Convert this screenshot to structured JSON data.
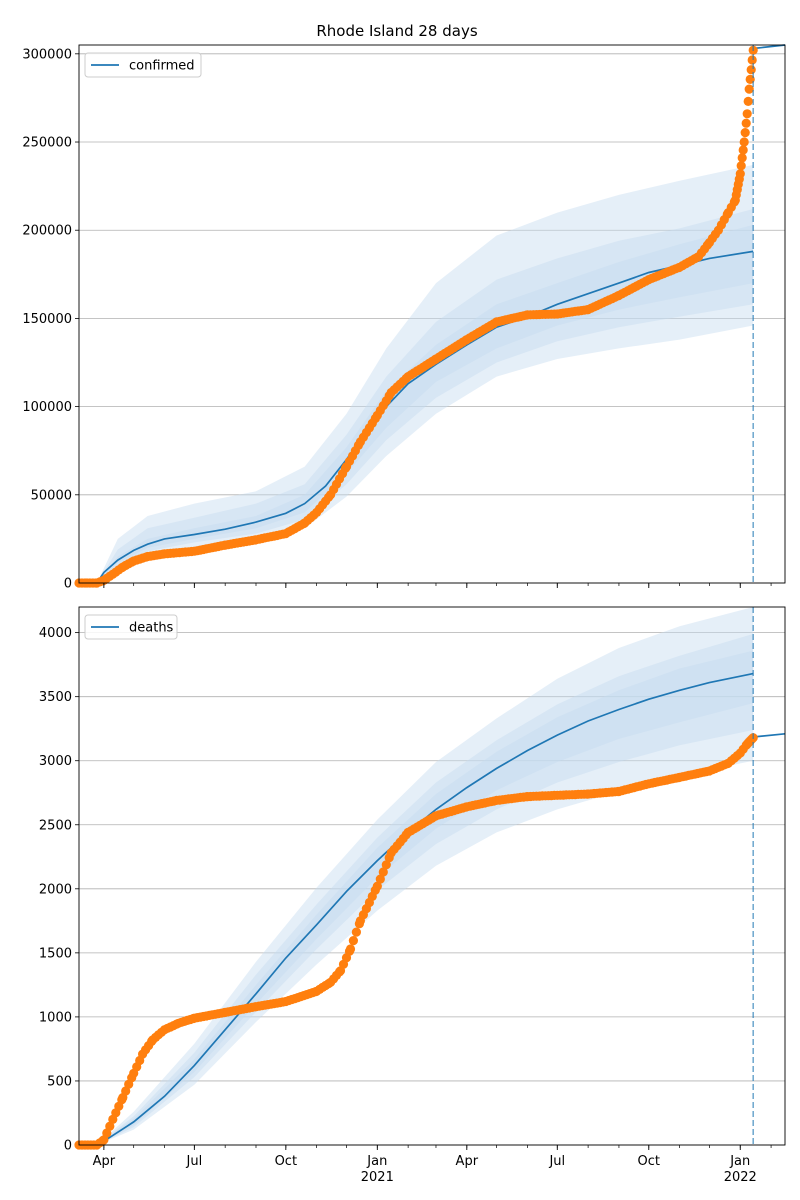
{
  "figure": {
    "title": "Rhode Island 28 days"
  },
  "colors": {
    "model": "#1f77b4",
    "band": "#c6dbef",
    "observed": "#ff7f0e",
    "grid": "#b0b0b0",
    "vline": "#1f77b4"
  },
  "x_axis": {
    "tick_labels": [
      "Apr",
      "Jul",
      "Oct",
      "Jan",
      "Apr",
      "Jul",
      "Oct",
      "Jan"
    ],
    "tick_dates": [
      "2020-04-01",
      "2020-07-01",
      "2020-10-01",
      "2021-01-01",
      "2021-04-01",
      "2021-07-01",
      "2021-10-01",
      "2022-01-01"
    ],
    "year_labels": [
      "2021",
      "2022"
    ],
    "year_dates": [
      "2021-01-01",
      "2022-01-01"
    ],
    "range": [
      "2020-03-07",
      "2022-02-15"
    ]
  },
  "chart_data": [
    {
      "type": "line",
      "legend": [
        "confirmed"
      ],
      "legend_placement": "top-left",
      "grid": true,
      "ylim": [
        0,
        305000
      ],
      "yticks": [
        0,
        50000,
        100000,
        150000,
        200000,
        250000,
        300000
      ],
      "ytick_labels": [
        "0",
        "50000",
        "100000",
        "150000",
        "200000",
        "250000",
        "300000"
      ],
      "forecast_start": "2022-01-14",
      "series": [
        {
          "name": "confirmed",
          "x": [
            "2020-03-10",
            "2020-03-25",
            "2020-04-01",
            "2020-04-15",
            "2020-05-01",
            "2020-05-15",
            "2020-06-01",
            "2020-07-01",
            "2020-08-01",
            "2020-09-01",
            "2020-10-01",
            "2020-10-20",
            "2020-11-10",
            "2020-12-01",
            "2020-12-20",
            "2021-01-10",
            "2021-02-01",
            "2021-03-01",
            "2021-04-01",
            "2021-05-01",
            "2021-06-01",
            "2021-07-01",
            "2021-08-01",
            "2021-09-01",
            "2021-10-01",
            "2021-11-01",
            "2021-12-01",
            "2022-01-14"
          ],
          "y": [
            0,
            0,
            6000,
            13000,
            18500,
            22000,
            25000,
            27500,
            30500,
            34500,
            39500,
            45000,
            55000,
            70000,
            85000,
            100000,
            113000,
            124000,
            135000,
            145000,
            151000,
            158000,
            164000,
            170000,
            176000,
            180000,
            184000,
            188000
          ]
        },
        {
          "name": "forecast",
          "x": [
            "2022-01-14",
            "2022-02-15"
          ],
          "y": [
            303000,
            305000
          ]
        }
      ],
      "bands": [
        {
          "x": [
            "2020-03-25",
            "2020-04-15",
            "2020-05-15",
            "2020-07-01",
            "2020-09-01",
            "2020-10-20",
            "2020-12-01",
            "2021-01-10",
            "2021-03-01",
            "2021-05-01",
            "2021-07-01",
            "2021-09-01",
            "2021-11-01",
            "2022-01-14"
          ],
          "lower": [
            0,
            8000,
            15000,
            20000,
            24000,
            31000,
            49000,
            72000,
            96000,
            117000,
            127000,
            133000,
            138000,
            146000
          ],
          "upper": [
            0,
            25000,
            38000,
            45000,
            52000,
            66000,
            96000,
            133000,
            170000,
            197000,
            210000,
            220000,
            228000,
            237000
          ]
        },
        {
          "x": [
            "2020-03-25",
            "2020-04-15",
            "2020-05-15",
            "2020-07-01",
            "2020-09-01",
            "2020-10-20",
            "2020-12-01",
            "2021-01-10",
            "2021-03-01",
            "2021-05-01",
            "2021-07-01",
            "2021-09-01",
            "2021-11-01",
            "2022-01-14"
          ],
          "lower": [
            0,
            10000,
            18000,
            23000,
            28000,
            36000,
            56000,
            81000,
            105000,
            125000,
            137000,
            145000,
            151000,
            158000
          ],
          "upper": [
            0,
            19000,
            31000,
            37000,
            45000,
            56000,
            84000,
            117000,
            148000,
            172000,
            184000,
            194000,
            201000,
            212000
          ]
        },
        {
          "x": [
            "2020-03-25",
            "2020-04-15",
            "2020-05-15",
            "2020-07-01",
            "2020-09-01",
            "2020-10-20",
            "2020-12-01",
            "2021-01-10",
            "2021-03-01",
            "2021-05-01",
            "2021-07-01",
            "2021-09-01",
            "2021-11-01",
            "2022-01-14"
          ],
          "lower": [
            0,
            11500,
            20000,
            25000,
            31000,
            40000,
            62000,
            88000,
            114000,
            133000,
            146000,
            155000,
            162000,
            170000
          ],
          "upper": [
            0,
            15000,
            25000,
            31000,
            38000,
            50000,
            77000,
            109000,
            135000,
            158000,
            170000,
            182000,
            192000,
            203000
          ]
        }
      ],
      "observed": {
        "name": "confirmed observed",
        "x": [
          "2020-03-07",
          "2020-03-15",
          "2020-03-25",
          "2020-04-01",
          "2020-04-10",
          "2020-04-20",
          "2020-05-01",
          "2020-05-15",
          "2020-06-01",
          "2020-07-01",
          "2020-08-01",
          "2020-09-01",
          "2020-10-01",
          "2020-10-20",
          "2020-11-01",
          "2020-11-15",
          "2020-12-01",
          "2020-12-15",
          "2021-01-01",
          "2021-01-15",
          "2021-02-01",
          "2021-03-01",
          "2021-04-01",
          "2021-05-01",
          "2021-06-01",
          "2021-07-01",
          "2021-08-01",
          "2021-09-01",
          "2021-10-01",
          "2021-11-01",
          "2021-11-20",
          "2021-12-01",
          "2021-12-10",
          "2021-12-20",
          "2021-12-27",
          "2022-01-01",
          "2022-01-05",
          "2022-01-08",
          "2022-01-10",
          "2022-01-12",
          "2022-01-14"
        ],
        "y": [
          0,
          0,
          0,
          1500,
          5000,
          9000,
          12500,
          15000,
          16500,
          18000,
          21500,
          24500,
          28000,
          34000,
          40000,
          50000,
          66000,
          80000,
          95000,
          108000,
          117000,
          127000,
          138000,
          148000,
          152000,
          152500,
          155000,
          163000,
          172000,
          179000,
          185000,
          193000,
          200000,
          210000,
          217000,
          232000,
          250000,
          266000,
          280000,
          291000,
          302000
        ]
      }
    },
    {
      "type": "line",
      "legend": [
        "deaths"
      ],
      "legend_placement": "top-left",
      "grid": true,
      "ylim": [
        0,
        4200
      ],
      "yticks": [
        0,
        500,
        1000,
        1500,
        2000,
        2500,
        3000,
        3500,
        4000
      ],
      "ytick_labels": [
        "0",
        "500",
        "1000",
        "1500",
        "2000",
        "2500",
        "3000",
        "3500",
        "4000"
      ],
      "forecast_start": "2022-01-14",
      "series": [
        {
          "name": "deaths",
          "x": [
            "2020-03-10",
            "2020-03-25",
            "2020-04-01",
            "2020-05-01",
            "2020-06-01",
            "2020-07-01",
            "2020-08-01",
            "2020-09-01",
            "2020-10-01",
            "2020-11-01",
            "2020-12-01",
            "2021-01-01",
            "2021-02-01",
            "2021-03-01",
            "2021-04-01",
            "2021-05-01",
            "2021-06-01",
            "2021-07-01",
            "2021-08-01",
            "2021-09-01",
            "2021-10-01",
            "2021-11-01",
            "2021-12-01",
            "2022-01-14"
          ],
          "y": [
            0,
            0,
            30,
            180,
            380,
            620,
            900,
            1180,
            1460,
            1720,
            1980,
            2220,
            2440,
            2620,
            2790,
            2940,
            3080,
            3200,
            3310,
            3400,
            3480,
            3550,
            3610,
            3680
          ]
        },
        {
          "name": "forecast",
          "x": [
            "2022-01-14",
            "2022-02-15"
          ],
          "y": [
            3185,
            3210
          ]
        }
      ],
      "bands": [
        {
          "x": [
            "2020-03-25",
            "2020-05-01",
            "2020-07-01",
            "2020-09-01",
            "2020-11-01",
            "2021-01-01",
            "2021-03-01",
            "2021-05-01",
            "2021-07-01",
            "2021-09-01",
            "2021-11-01",
            "2022-01-14"
          ],
          "lower": [
            0,
            120,
            470,
            960,
            1410,
            1830,
            2180,
            2440,
            2620,
            2760,
            2880,
            3000
          ],
          "upper": [
            0,
            260,
            790,
            1430,
            2010,
            2540,
            2990,
            3330,
            3640,
            3880,
            4050,
            4200
          ]
        },
        {
          "x": [
            "2020-03-25",
            "2020-05-01",
            "2020-07-01",
            "2020-09-01",
            "2020-11-01",
            "2021-01-01",
            "2021-03-01",
            "2021-05-01",
            "2021-07-01",
            "2021-09-01",
            "2021-11-01",
            "2022-01-14"
          ],
          "lower": [
            0,
            140,
            530,
            1040,
            1530,
            1990,
            2350,
            2620,
            2830,
            2990,
            3120,
            3240
          ],
          "upper": [
            0,
            225,
            720,
            1330,
            1880,
            2400,
            2830,
            3160,
            3440,
            3660,
            3820,
            3990
          ]
        },
        {
          "x": [
            "2020-03-25",
            "2020-05-01",
            "2020-07-01",
            "2020-09-01",
            "2020-11-01",
            "2021-01-01",
            "2021-03-01",
            "2021-05-01",
            "2021-07-01",
            "2021-09-01",
            "2021-11-01",
            "2022-01-14"
          ],
          "lower": [
            0,
            155,
            570,
            1100,
            1610,
            2090,
            2470,
            2770,
            2990,
            3170,
            3300,
            3450
          ],
          "upper": [
            0,
            205,
            670,
            1250,
            1800,
            2320,
            2740,
            3070,
            3340,
            3550,
            3720,
            3860
          ]
        }
      ],
      "observed": {
        "name": "deaths observed",
        "x": [
          "2020-03-07",
          "2020-03-25",
          "2020-04-01",
          "2020-04-10",
          "2020-04-20",
          "2020-05-01",
          "2020-05-10",
          "2020-05-20",
          "2020-06-01",
          "2020-06-15",
          "2020-07-01",
          "2020-08-01",
          "2020-09-01",
          "2020-10-01",
          "2020-11-01",
          "2020-11-15",
          "2020-11-25",
          "2020-12-05",
          "2020-12-15",
          "2021-01-01",
          "2021-01-15",
          "2021-02-01",
          "2021-03-01",
          "2021-04-01",
          "2021-05-01",
          "2021-06-01",
          "2021-07-01",
          "2021-08-01",
          "2021-09-01",
          "2021-10-01",
          "2021-11-01",
          "2021-12-01",
          "2021-12-20",
          "2022-01-01",
          "2022-01-08",
          "2022-01-14"
        ],
        "y": [
          0,
          0,
          40,
          200,
          370,
          560,
          710,
          820,
          900,
          950,
          990,
          1035,
          1080,
          1120,
          1200,
          1270,
          1360,
          1530,
          1750,
          2020,
          2280,
          2440,
          2570,
          2640,
          2690,
          2720,
          2730,
          2740,
          2760,
          2820,
          2870,
          2920,
          2980,
          3060,
          3130,
          3180
        ]
      }
    }
  ]
}
